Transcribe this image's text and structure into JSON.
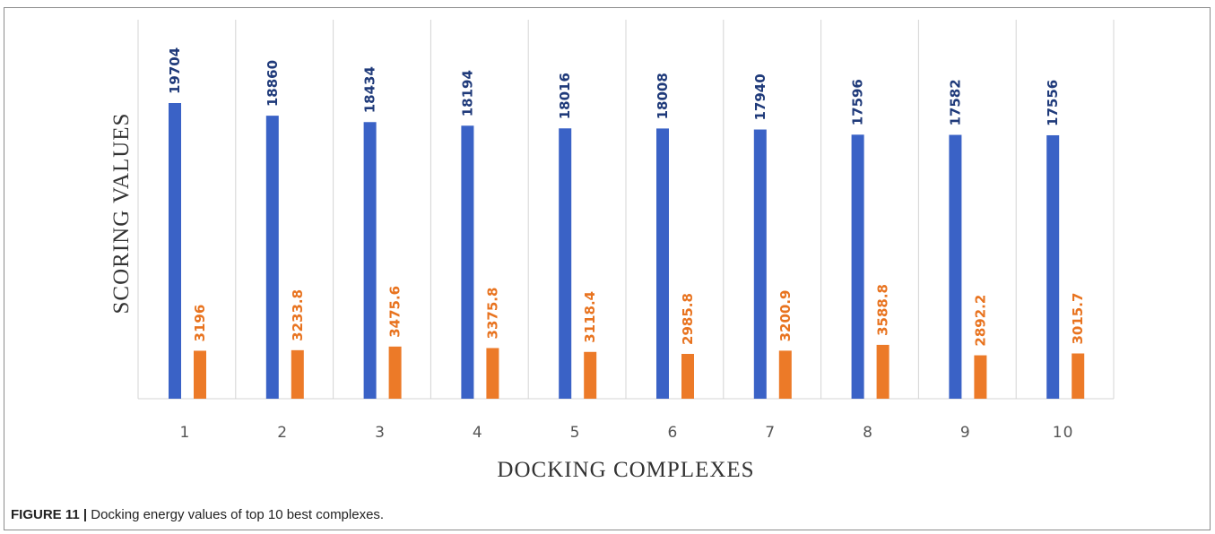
{
  "caption": {
    "label": "FIGURE 11 |",
    "text": "Docking energy values of top 10 best complexes."
  },
  "chart_data": {
    "type": "bar",
    "xlabel": "DOCKING COMPLEXES",
    "ylabel": "SCORING VALUES",
    "categories": [
      "1",
      "2",
      "3",
      "4",
      "5",
      "6",
      "7",
      "8",
      "9",
      "10"
    ],
    "series": [
      {
        "color": "#3a62c6",
        "values": [
          19704,
          18860,
          18434,
          18194,
          18016,
          18008,
          17940,
          17596,
          17582,
          17556
        ],
        "labels": [
          "19704",
          "18860",
          "18434",
          "18194",
          "18016",
          "18008",
          "17940",
          "17596",
          "17582",
          "17556"
        ],
        "label_color": "#1f3a7a"
      },
      {
        "color": "#ec7a28",
        "values": [
          3196,
          3233.8,
          3475.6,
          3375.8,
          3118.4,
          2985.8,
          3200.9,
          3588.8,
          2892.2,
          3015.7
        ],
        "labels": [
          "3196",
          "3233.8",
          "3475.6",
          "3375.8",
          "3118.4",
          "2985.8",
          "3200.9",
          "3588.8",
          "2892.2",
          "3015.7"
        ],
        "label_color": "#e8731f"
      }
    ],
    "grid": true,
    "legend": "none"
  }
}
